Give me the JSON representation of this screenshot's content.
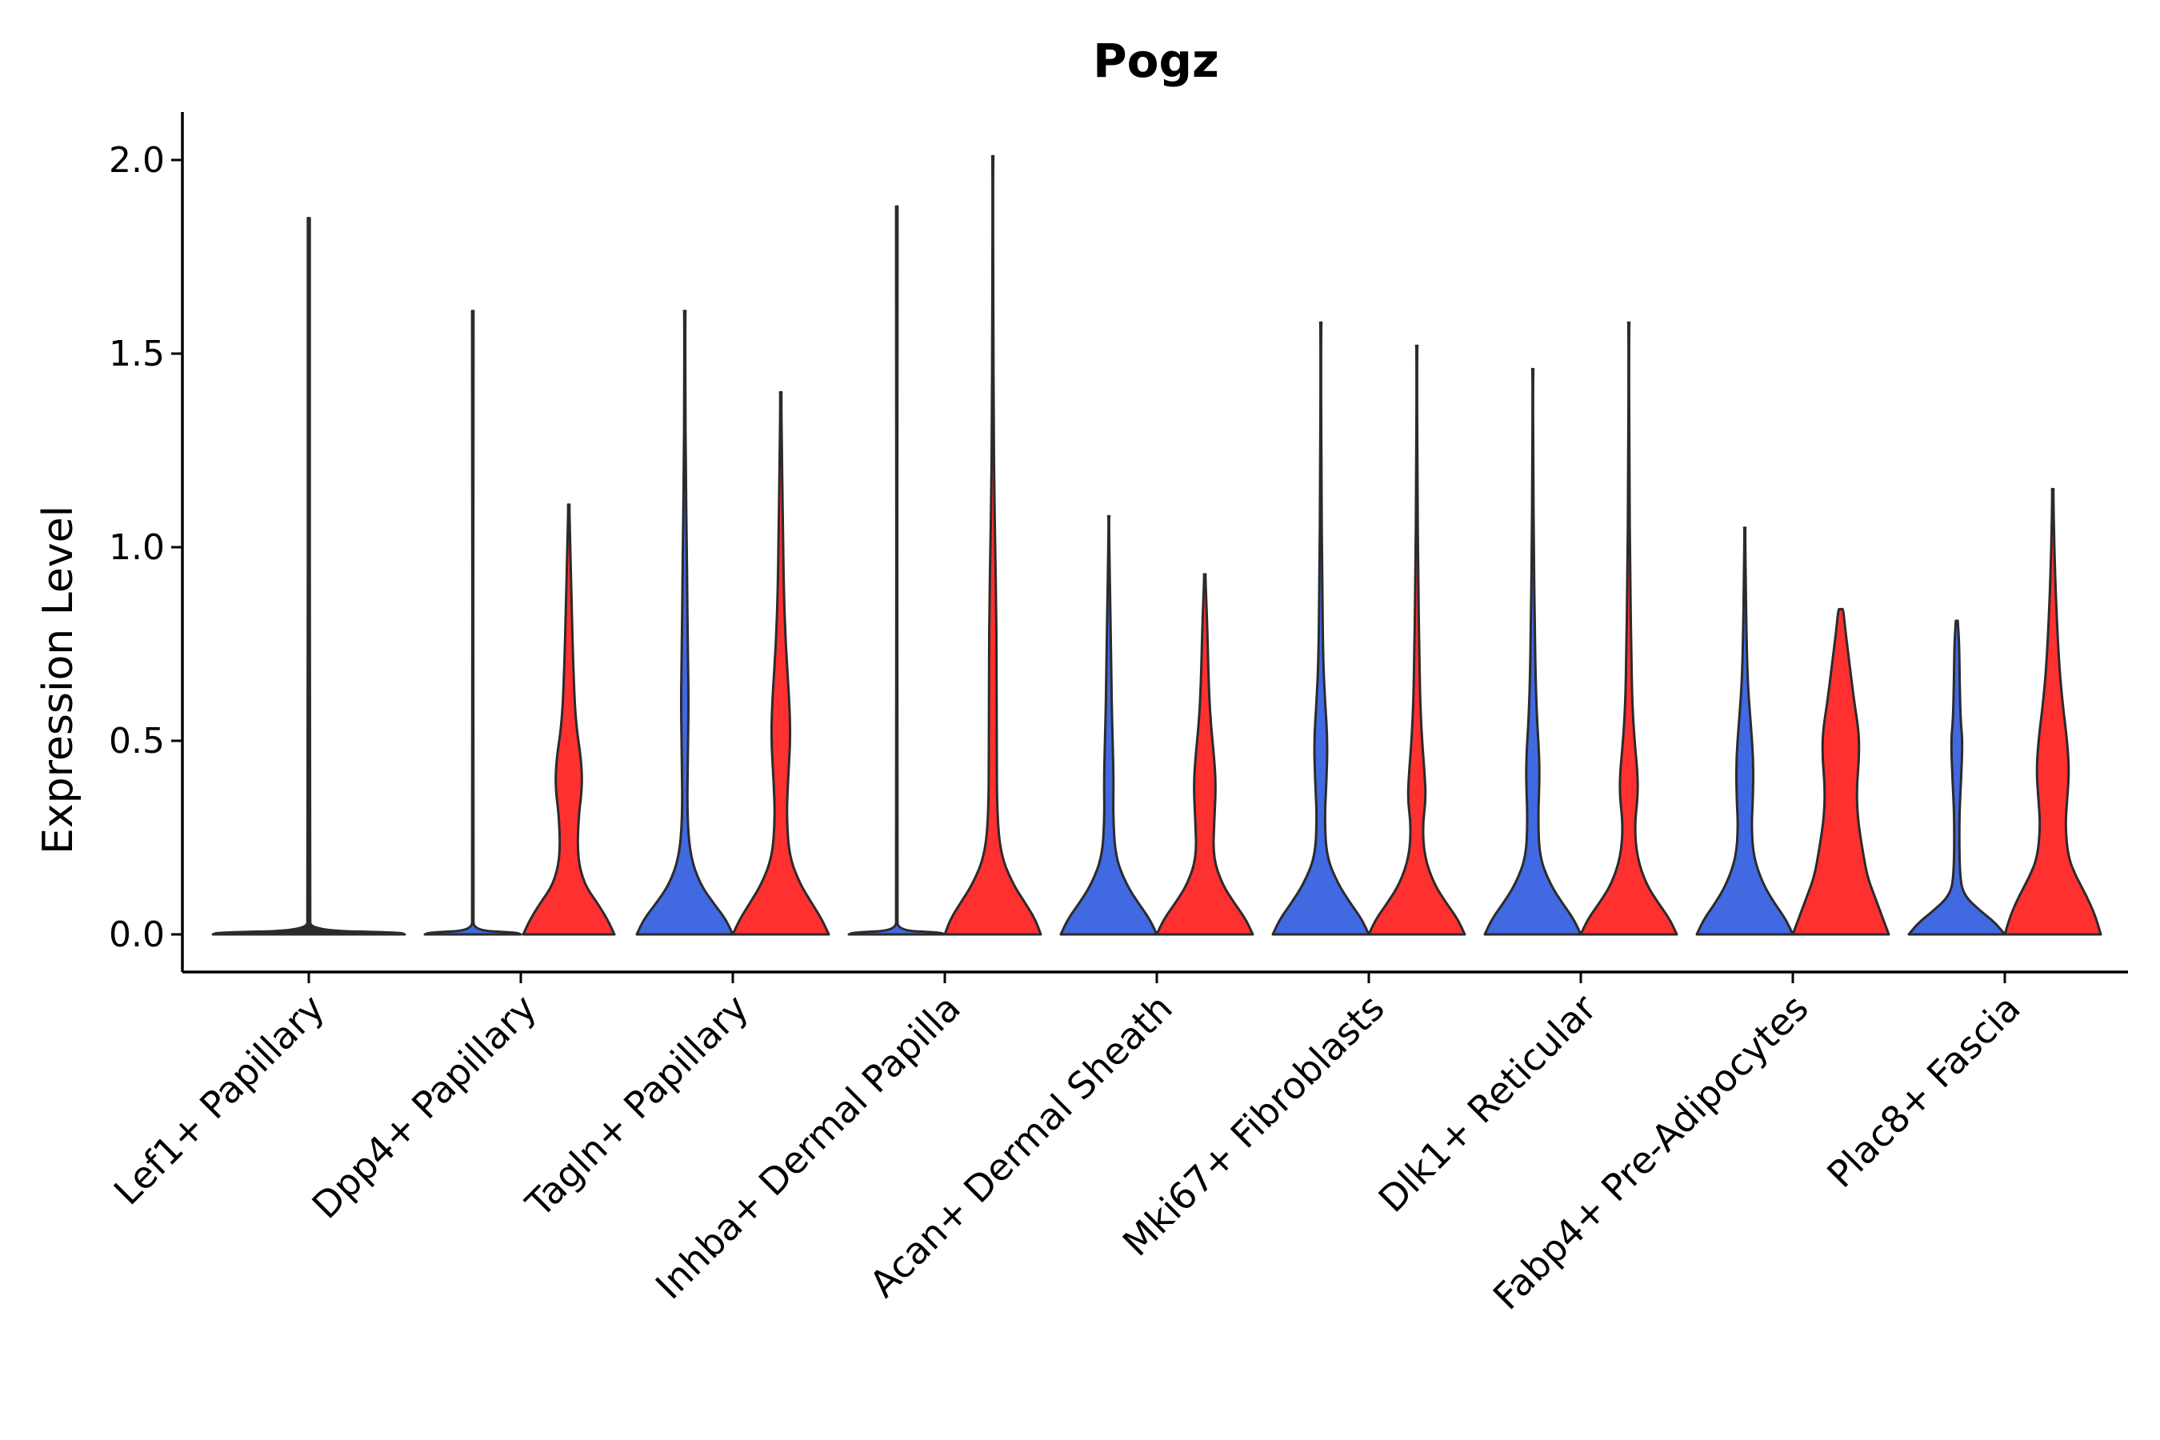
{
  "chart_data": {
    "type": "violin",
    "title": "Pogz",
    "xlabel": "",
    "ylabel": "Expression Level",
    "ylim": [
      -0.1,
      2.12
    ],
    "yticks": [
      0.0,
      0.5,
      1.0,
      1.5,
      2.0
    ],
    "ytick_labels": [
      "0.0",
      "0.5",
      "1.0",
      "1.5",
      "2.0"
    ],
    "legend": "none",
    "grid": false,
    "groups": [
      "blue",
      "red"
    ],
    "colors": {
      "blue": "#4169E1",
      "red": "#FF3030",
      "outline": "#2b2b2b"
    },
    "categories": [
      "Lef1+ Papillary",
      "Dpp4+ Papillary",
      "Tagln+ Papillary",
      "Inhba+ Dermal Papilla",
      "Acan+ Dermal Sheath",
      "Mki67+ Fibroblasts",
      "Dlk1+ Reticular",
      "Fabp4+ Pre-Adipocytes",
      "Plac8+ Fascia"
    ],
    "series": [
      {
        "category": "Lef1+ Papillary",
        "group": "single",
        "max": 1.85,
        "density": [
          [
            0,
            1.0
          ],
          [
            0.005,
            0.95
          ],
          [
            0.01,
            0.02
          ],
          [
            0.05,
            0.01
          ],
          [
            1.85,
            0.01
          ]
        ]
      },
      {
        "category": "Dpp4+ Papillary",
        "group": "blue",
        "max": 1.61,
        "density": [
          [
            0,
            1.0
          ],
          [
            0.005,
            0.9
          ],
          [
            0.01,
            0.02
          ],
          [
            0.05,
            0.01
          ],
          [
            1.61,
            0.01
          ]
        ]
      },
      {
        "category": "Dpp4+ Papillary",
        "group": "red",
        "max": 1.11,
        "density": [
          [
            0,
            0.95
          ],
          [
            0.04,
            0.8
          ],
          [
            0.08,
            0.6
          ],
          [
            0.13,
            0.32
          ],
          [
            0.2,
            0.18
          ],
          [
            0.3,
            0.2
          ],
          [
            0.38,
            0.28
          ],
          [
            0.45,
            0.26
          ],
          [
            0.55,
            0.14
          ],
          [
            0.7,
            0.09
          ],
          [
            0.85,
            0.06
          ],
          [
            1.0,
            0.03
          ],
          [
            1.11,
            0.01
          ]
        ]
      },
      {
        "category": "Tagln+ Papillary",
        "group": "blue",
        "max": 1.61,
        "density": [
          [
            0,
            1.0
          ],
          [
            0.04,
            0.85
          ],
          [
            0.08,
            0.6
          ],
          [
            0.13,
            0.32
          ],
          [
            0.2,
            0.12
          ],
          [
            0.3,
            0.05
          ],
          [
            0.45,
            0.06
          ],
          [
            0.6,
            0.08
          ],
          [
            0.75,
            0.06
          ],
          [
            0.9,
            0.05
          ],
          [
            1.0,
            0.04
          ],
          [
            1.2,
            0.02
          ],
          [
            1.4,
            0.01
          ],
          [
            1.61,
            0.01
          ]
        ]
      },
      {
        "category": "Tagln+ Papillary",
        "group": "red",
        "max": 1.4,
        "density": [
          [
            0,
            1.0
          ],
          [
            0.04,
            0.85
          ],
          [
            0.08,
            0.65
          ],
          [
            0.13,
            0.4
          ],
          [
            0.2,
            0.18
          ],
          [
            0.3,
            0.12
          ],
          [
            0.4,
            0.15
          ],
          [
            0.5,
            0.2
          ],
          [
            0.6,
            0.18
          ],
          [
            0.75,
            0.1
          ],
          [
            0.9,
            0.06
          ],
          [
            1.1,
            0.04
          ],
          [
            1.25,
            0.02
          ],
          [
            1.4,
            0.01
          ]
        ]
      },
      {
        "category": "Inhba+ Dermal Papilla",
        "group": "blue",
        "max": 1.88,
        "density": [
          [
            0,
            1.0
          ],
          [
            0.005,
            0.9
          ],
          [
            0.01,
            0.02
          ],
          [
            0.05,
            0.01
          ],
          [
            1.88,
            0.01
          ]
        ]
      },
      {
        "category": "Inhba+ Dermal Papilla",
        "group": "red",
        "max": 2.01,
        "density": [
          [
            0,
            1.0
          ],
          [
            0.04,
            0.88
          ],
          [
            0.08,
            0.68
          ],
          [
            0.13,
            0.42
          ],
          [
            0.2,
            0.18
          ],
          [
            0.3,
            0.09
          ],
          [
            0.5,
            0.08
          ],
          [
            0.7,
            0.08
          ],
          [
            0.85,
            0.07
          ],
          [
            1.0,
            0.05
          ],
          [
            1.15,
            0.03
          ],
          [
            1.3,
            0.02
          ],
          [
            1.6,
            0.01
          ],
          [
            2.01,
            0.005
          ]
        ]
      },
      {
        "category": "Acan+ Dermal Sheath",
        "group": "blue",
        "max": 1.08,
        "density": [
          [
            0,
            1.0
          ],
          [
            0.04,
            0.85
          ],
          [
            0.08,
            0.62
          ],
          [
            0.13,
            0.36
          ],
          [
            0.2,
            0.14
          ],
          [
            0.3,
            0.09
          ],
          [
            0.4,
            0.1
          ],
          [
            0.5,
            0.08
          ],
          [
            0.6,
            0.06
          ],
          [
            0.7,
            0.05
          ],
          [
            0.85,
            0.03
          ],
          [
            1.0,
            0.01
          ],
          [
            1.08,
            0.005
          ]
        ]
      },
      {
        "category": "Acan+ Dermal Sheath",
        "group": "red",
        "max": 0.93,
        "density": [
          [
            0,
            1.0
          ],
          [
            0.04,
            0.85
          ],
          [
            0.08,
            0.62
          ],
          [
            0.13,
            0.36
          ],
          [
            0.2,
            0.17
          ],
          [
            0.3,
            0.2
          ],
          [
            0.38,
            0.23
          ],
          [
            0.45,
            0.2
          ],
          [
            0.55,
            0.12
          ],
          [
            0.65,
            0.08
          ],
          [
            0.8,
            0.05
          ],
          [
            0.93,
            0.01
          ]
        ]
      },
      {
        "category": "Mki67+ Fibroblasts",
        "group": "blue",
        "max": 1.58,
        "density": [
          [
            0,
            1.0
          ],
          [
            0.04,
            0.85
          ],
          [
            0.08,
            0.62
          ],
          [
            0.13,
            0.36
          ],
          [
            0.2,
            0.12
          ],
          [
            0.3,
            0.08
          ],
          [
            0.4,
            0.12
          ],
          [
            0.5,
            0.14
          ],
          [
            0.6,
            0.09
          ],
          [
            0.7,
            0.05
          ],
          [
            0.9,
            0.03
          ],
          [
            1.2,
            0.01
          ],
          [
            1.58,
            0.005
          ]
        ]
      },
      {
        "category": "Mki67+ Fibroblasts",
        "group": "red",
        "max": 1.52,
        "density": [
          [
            0,
            1.0
          ],
          [
            0.04,
            0.85
          ],
          [
            0.08,
            0.62
          ],
          [
            0.13,
            0.36
          ],
          [
            0.2,
            0.16
          ],
          [
            0.28,
            0.12
          ],
          [
            0.35,
            0.19
          ],
          [
            0.42,
            0.16
          ],
          [
            0.5,
            0.11
          ],
          [
            0.6,
            0.07
          ],
          [
            0.75,
            0.05
          ],
          [
            0.9,
            0.03
          ],
          [
            1.2,
            0.01
          ],
          [
            1.52,
            0.005
          ]
        ]
      },
      {
        "category": "Dlk1+ Reticular",
        "group": "blue",
        "max": 1.46,
        "density": [
          [
            0,
            1.0
          ],
          [
            0.04,
            0.85
          ],
          [
            0.08,
            0.62
          ],
          [
            0.13,
            0.36
          ],
          [
            0.2,
            0.14
          ],
          [
            0.3,
            0.11
          ],
          [
            0.4,
            0.14
          ],
          [
            0.47,
            0.13
          ],
          [
            0.55,
            0.09
          ],
          [
            0.65,
            0.06
          ],
          [
            0.8,
            0.04
          ],
          [
            1.0,
            0.02
          ],
          [
            1.2,
            0.01
          ],
          [
            1.46,
            0.005
          ]
        ]
      },
      {
        "category": "Dlk1+ Reticular",
        "group": "red",
        "max": 1.58,
        "density": [
          [
            0,
            1.0
          ],
          [
            0.04,
            0.85
          ],
          [
            0.08,
            0.62
          ],
          [
            0.13,
            0.36
          ],
          [
            0.2,
            0.17
          ],
          [
            0.28,
            0.12
          ],
          [
            0.36,
            0.19
          ],
          [
            0.42,
            0.18
          ],
          [
            0.5,
            0.12
          ],
          [
            0.6,
            0.07
          ],
          [
            0.75,
            0.05
          ],
          [
            0.9,
            0.03
          ],
          [
            1.2,
            0.01
          ],
          [
            1.58,
            0.005
          ]
        ]
      },
      {
        "category": "Fabp4+ Pre-Adipocytes",
        "group": "blue",
        "max": 1.05,
        "density": [
          [
            0,
            1.0
          ],
          [
            0.04,
            0.85
          ],
          [
            0.08,
            0.62
          ],
          [
            0.13,
            0.38
          ],
          [
            0.2,
            0.18
          ],
          [
            0.28,
            0.14
          ],
          [
            0.35,
            0.17
          ],
          [
            0.45,
            0.18
          ],
          [
            0.55,
            0.12
          ],
          [
            0.65,
            0.06
          ],
          [
            0.8,
            0.03
          ],
          [
            1.05,
            0.005
          ]
        ]
      },
      {
        "category": "Fabp4+ Pre-Adipocytes",
        "group": "red",
        "max": 0.84,
        "density": [
          [
            0,
            1.0
          ],
          [
            0.05,
            0.85
          ],
          [
            0.1,
            0.7
          ],
          [
            0.15,
            0.55
          ],
          [
            0.22,
            0.45
          ],
          [
            0.3,
            0.35
          ],
          [
            0.38,
            0.33
          ],
          [
            0.45,
            0.38
          ],
          [
            0.52,
            0.38
          ],
          [
            0.6,
            0.28
          ],
          [
            0.7,
            0.18
          ],
          [
            0.78,
            0.1
          ],
          [
            0.84,
            0.05
          ]
        ]
      },
      {
        "category": "Plac8+ Fascia",
        "group": "blue",
        "max": 0.81,
        "density": [
          [
            0,
            1.0
          ],
          [
            0.03,
            0.8
          ],
          [
            0.06,
            0.5
          ],
          [
            0.1,
            0.15
          ],
          [
            0.15,
            0.06
          ],
          [
            0.3,
            0.05
          ],
          [
            0.4,
            0.09
          ],
          [
            0.5,
            0.12
          ],
          [
            0.55,
            0.08
          ],
          [
            0.65,
            0.06
          ],
          [
            0.75,
            0.05
          ],
          [
            0.81,
            0.02
          ]
        ]
      },
      {
        "category": "Plac8+ Fascia",
        "group": "red",
        "max": 1.15,
        "density": [
          [
            0,
            1.0
          ],
          [
            0.05,
            0.88
          ],
          [
            0.1,
            0.7
          ],
          [
            0.15,
            0.48
          ],
          [
            0.2,
            0.32
          ],
          [
            0.28,
            0.26
          ],
          [
            0.35,
            0.3
          ],
          [
            0.42,
            0.34
          ],
          [
            0.5,
            0.3
          ],
          [
            0.6,
            0.2
          ],
          [
            0.7,
            0.13
          ],
          [
            0.85,
            0.07
          ],
          [
            1.0,
            0.03
          ],
          [
            1.15,
            0.01
          ]
        ]
      }
    ]
  }
}
